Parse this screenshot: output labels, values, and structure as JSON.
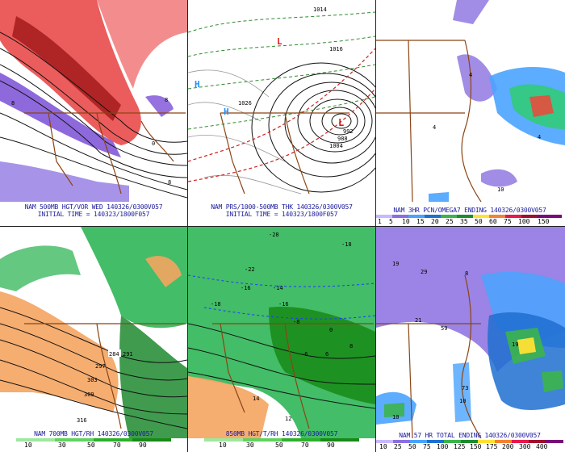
{
  "panels": [
    {
      "id": "p1",
      "caption": "NAM 500MB HGT/VOR WED 140326/0300V057",
      "initial": "INITIAL TIME = 140323/1800F057"
    },
    {
      "id": "p2",
      "caption": "NAM PRS/1000-500MB THK 140326/0300V057",
      "initial": "INITIAL TIME = 140323/1800F057",
      "highs": [
        "H",
        "H"
      ],
      "lows": [
        "L",
        "L"
      ],
      "labels": [
        "1014",
        "1026",
        "1016",
        "992",
        "1004",
        "988"
      ]
    },
    {
      "id": "p3",
      "caption": "NAM 3HR PCN/OMEGA7 ENDING 140326/0300V057",
      "scale": [
        "1",
        "5",
        "10",
        "15",
        "20",
        "25",
        "35",
        "50",
        "60",
        "75",
        "100",
        "150"
      ]
    },
    {
      "id": "p4",
      "caption": "NAM 700MB HGT/RH 140326/0300V057",
      "labels": [
        "284",
        "291",
        "297",
        "303",
        "309",
        "316"
      ],
      "scale": [
        "10",
        "30",
        "50",
        "70",
        "90"
      ]
    },
    {
      "id": "p5",
      "caption": "850MB HGT/T/RH 140326/0300V057",
      "labels": [
        "-28",
        "-18",
        "-22",
        "-14",
        "-16",
        "-18",
        "-16",
        "-8",
        "-6",
        "0",
        "6",
        "8",
        "12",
        "14"
      ],
      "scale": [
        "10",
        "30",
        "50",
        "70",
        "90"
      ]
    },
    {
      "id": "p6",
      "caption": "NAM 57 HR TOTAL ENDING 140326/0300V057",
      "labels": [
        "19",
        "29",
        "21",
        "59",
        "8",
        "73",
        "10",
        "19",
        "10"
      ],
      "scale": [
        "10",
        "25",
        "50",
        "75",
        "100",
        "125",
        "150",
        "175",
        "200",
        "300",
        "400"
      ]
    }
  ],
  "colors": {
    "caption": "#1a1a99",
    "borders": "#8b4513",
    "heights": "#111111",
    "vort_red": "#d21f1f",
    "vort_purple": "#7a4fd6",
    "rh_green": "#22b14c",
    "temp_orange": "#f4a460",
    "precip_blue": "#4aa3ff",
    "precip_green": "#3cb44b",
    "precip_purple": "#8a6fe0"
  }
}
